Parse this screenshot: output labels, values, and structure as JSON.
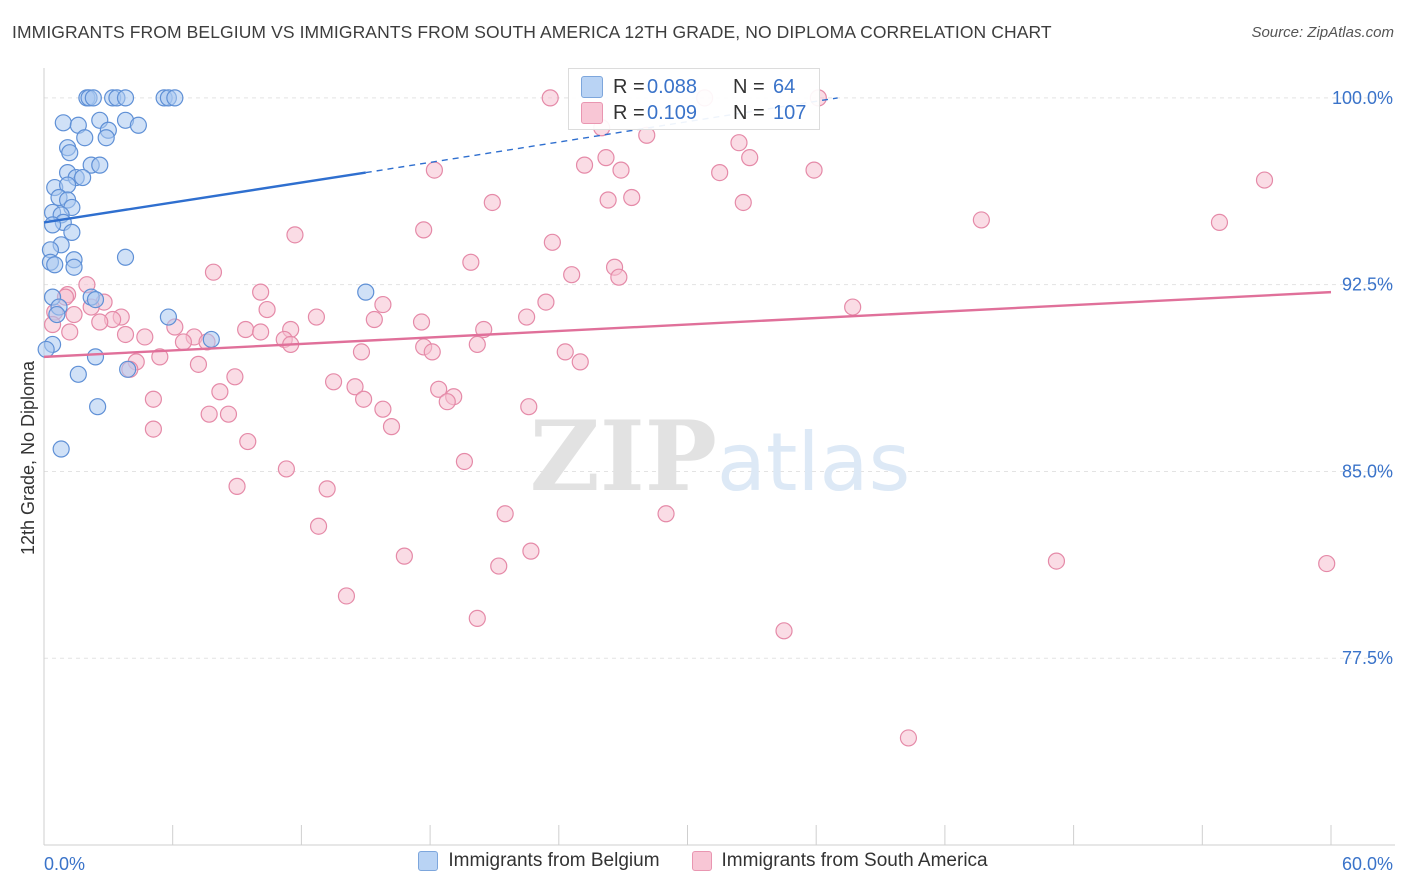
{
  "title": "IMMIGRANTS FROM BELGIUM VS IMMIGRANTS FROM SOUTH AMERICA 12TH GRADE, NO DIPLOMA CORRELATION CHART",
  "source": "Source: ZipAtlas.com",
  "watermark": "ZIPatlas",
  "stats": {
    "r_label": "R =",
    "n_label": "N =",
    "rows": [
      {
        "series": "Immigrants from Belgium",
        "r": "0.088",
        "n": "64",
        "color": "#b9d3f4"
      },
      {
        "series": "Immigrants from South America",
        "r": "0.109",
        "n": "107",
        "color": "#f8c6d5"
      }
    ]
  },
  "colors": {
    "blue_fill": "#a9c8f0",
    "blue_stroke": "#5f90d6",
    "blue_line": "#2f6fcf",
    "pink_fill": "#f6bfd0",
    "pink_stroke": "#e58aa8",
    "pink_line": "#e0709a",
    "axis_label": "#3a73c9",
    "grid": "#e3e3e3"
  },
  "chart_data": {
    "type": "scatter",
    "title": "IMMIGRANTS FROM BELGIUM VS IMMIGRANTS FROM SOUTH AMERICA 12TH GRADE, NO DIPLOMA CORRELATION CHART",
    "xlabel": "",
    "ylabel": "12th Grade, No Diploma",
    "xlim": [
      0,
      60
    ],
    "ylim": [
      70.0,
      101.2
    ],
    "x_tick_labels": [
      "0.0%",
      "60.0%"
    ],
    "y_ticks": [
      77.5,
      85.0,
      92.5,
      100.0
    ],
    "y_tick_labels": [
      "77.5%",
      "85.0%",
      "92.5%",
      "100.0%"
    ],
    "grid": true,
    "legend_position": "bottom",
    "series": [
      {
        "name": "Immigrants from Belgium",
        "trend": {
          "x": [
            0,
            15,
            37
          ],
          "y": [
            95.0,
            97.0,
            100.0
          ],
          "solid_until_x": 15
        },
        "points": [
          [
            2.0,
            100.0
          ],
          [
            2.1,
            100.0
          ],
          [
            2.3,
            100.0
          ],
          [
            3.2,
            100.0
          ],
          [
            3.4,
            100.0
          ],
          [
            3.8,
            100.0
          ],
          [
            5.6,
            100.0
          ],
          [
            5.8,
            100.0
          ],
          [
            6.1,
            100.0
          ],
          [
            0.9,
            99.0
          ],
          [
            1.6,
            98.9
          ],
          [
            2.6,
            99.1
          ],
          [
            3.0,
            98.7
          ],
          [
            3.8,
            99.1
          ],
          [
            4.4,
            98.9
          ],
          [
            1.9,
            98.4
          ],
          [
            2.9,
            98.4
          ],
          [
            1.1,
            98.0
          ],
          [
            1.2,
            97.8
          ],
          [
            2.2,
            97.3
          ],
          [
            2.6,
            97.3
          ],
          [
            1.1,
            97.0
          ],
          [
            1.5,
            96.8
          ],
          [
            1.8,
            96.8
          ],
          [
            0.5,
            96.4
          ],
          [
            1.1,
            96.5
          ],
          [
            0.7,
            96.0
          ],
          [
            1.1,
            95.9
          ],
          [
            1.3,
            95.6
          ],
          [
            0.4,
            95.4
          ],
          [
            0.8,
            95.3
          ],
          [
            0.9,
            95.0
          ],
          [
            0.4,
            94.9
          ],
          [
            1.3,
            94.6
          ],
          [
            0.8,
            94.1
          ],
          [
            0.3,
            93.9
          ],
          [
            1.4,
            93.5
          ],
          [
            3.8,
            93.6
          ],
          [
            0.3,
            93.4
          ],
          [
            0.5,
            93.3
          ],
          [
            1.4,
            93.2
          ],
          [
            15.0,
            92.2
          ],
          [
            0.4,
            92.0
          ],
          [
            2.2,
            92.0
          ],
          [
            2.4,
            91.9
          ],
          [
            0.7,
            91.6
          ],
          [
            0.6,
            91.3
          ],
          [
            5.8,
            91.2
          ],
          [
            0.4,
            90.1
          ],
          [
            7.8,
            90.3
          ],
          [
            0.1,
            89.9
          ],
          [
            2.4,
            89.6
          ],
          [
            1.6,
            88.9
          ],
          [
            3.9,
            89.1
          ],
          [
            2.5,
            87.6
          ],
          [
            0.8,
            85.9
          ]
        ]
      },
      {
        "name": "Immigrants from South America",
        "trend": {
          "x": [
            0,
            60
          ],
          "y": [
            89.6,
            92.2
          ]
        },
        "points": [
          [
            23.6,
            100.0
          ],
          [
            30.8,
            100.0
          ],
          [
            36.1,
            100.0
          ],
          [
            26.0,
            98.8
          ],
          [
            28.1,
            98.5
          ],
          [
            32.4,
            98.2
          ],
          [
            26.2,
            97.6
          ],
          [
            32.9,
            97.6
          ],
          [
            25.2,
            97.3
          ],
          [
            31.5,
            97.0
          ],
          [
            18.2,
            97.1
          ],
          [
            26.9,
            97.1
          ],
          [
            35.9,
            97.1
          ],
          [
            56.9,
            96.7
          ],
          [
            27.4,
            96.0
          ],
          [
            20.9,
            95.8
          ],
          [
            26.3,
            95.9
          ],
          [
            32.6,
            95.8
          ],
          [
            43.7,
            95.1
          ],
          [
            54.8,
            95.0
          ],
          [
            17.7,
            94.7
          ],
          [
            11.7,
            94.5
          ],
          [
            23.7,
            94.2
          ],
          [
            19.9,
            93.4
          ],
          [
            26.6,
            93.2
          ],
          [
            7.9,
            93.0
          ],
          [
            24.6,
            92.9
          ],
          [
            26.8,
            92.8
          ],
          [
            10.1,
            92.2
          ],
          [
            2.0,
            92.5
          ],
          [
            1.1,
            92.1
          ],
          [
            1.0,
            92.0
          ],
          [
            23.4,
            91.8
          ],
          [
            2.8,
            91.8
          ],
          [
            15.8,
            91.7
          ],
          [
            2.2,
            91.6
          ],
          [
            37.7,
            91.6
          ],
          [
            10.4,
            91.5
          ],
          [
            0.5,
            91.4
          ],
          [
            1.4,
            91.3
          ],
          [
            3.6,
            91.2
          ],
          [
            12.7,
            91.2
          ],
          [
            22.5,
            91.2
          ],
          [
            15.4,
            91.1
          ],
          [
            3.2,
            91.1
          ],
          [
            2.6,
            91.0
          ],
          [
            17.6,
            91.0
          ],
          [
            0.4,
            90.9
          ],
          [
            6.1,
            90.8
          ],
          [
            9.4,
            90.7
          ],
          [
            11.5,
            90.7
          ],
          [
            10.1,
            90.6
          ],
          [
            20.5,
            90.7
          ],
          [
            1.2,
            90.6
          ],
          [
            3.8,
            90.5
          ],
          [
            4.7,
            90.4
          ],
          [
            7.0,
            90.4
          ],
          [
            6.5,
            90.2
          ],
          [
            11.2,
            90.3
          ],
          [
            7.6,
            90.2
          ],
          [
            11.5,
            90.1
          ],
          [
            17.7,
            90.0
          ],
          [
            20.2,
            90.1
          ],
          [
            14.8,
            89.8
          ],
          [
            18.1,
            89.8
          ],
          [
            24.3,
            89.8
          ],
          [
            5.4,
            89.6
          ],
          [
            4.3,
            89.4
          ],
          [
            25.0,
            89.4
          ],
          [
            7.2,
            89.3
          ],
          [
            4.0,
            89.1
          ],
          [
            8.9,
            88.8
          ],
          [
            13.5,
            88.6
          ],
          [
            14.5,
            88.4
          ],
          [
            8.2,
            88.2
          ],
          [
            18.4,
            88.3
          ],
          [
            19.1,
            88.0
          ],
          [
            5.1,
            87.9
          ],
          [
            14.9,
            87.9
          ],
          [
            18.8,
            87.8
          ],
          [
            22.6,
            87.6
          ],
          [
            15.8,
            87.5
          ],
          [
            7.7,
            87.3
          ],
          [
            8.6,
            87.3
          ],
          [
            16.2,
            86.8
          ],
          [
            5.1,
            86.7
          ],
          [
            9.5,
            86.2
          ],
          [
            19.6,
            85.4
          ],
          [
            11.3,
            85.1
          ],
          [
            9.0,
            84.4
          ],
          [
            13.2,
            84.3
          ],
          [
            29.0,
            83.3
          ],
          [
            21.5,
            83.3
          ],
          [
            12.8,
            82.8
          ],
          [
            22.7,
            81.8
          ],
          [
            16.8,
            81.6
          ],
          [
            21.2,
            81.2
          ],
          [
            47.2,
            81.4
          ],
          [
            59.8,
            81.3
          ],
          [
            14.1,
            80.0
          ],
          [
            20.2,
            79.1
          ],
          [
            34.5,
            78.6
          ],
          [
            40.3,
            74.3
          ]
        ]
      }
    ]
  },
  "legend": {
    "items": [
      {
        "label": "Immigrants from Belgium",
        "swatch": "blue"
      },
      {
        "label": "Immigrants from South America",
        "swatch": "pink"
      }
    ]
  }
}
